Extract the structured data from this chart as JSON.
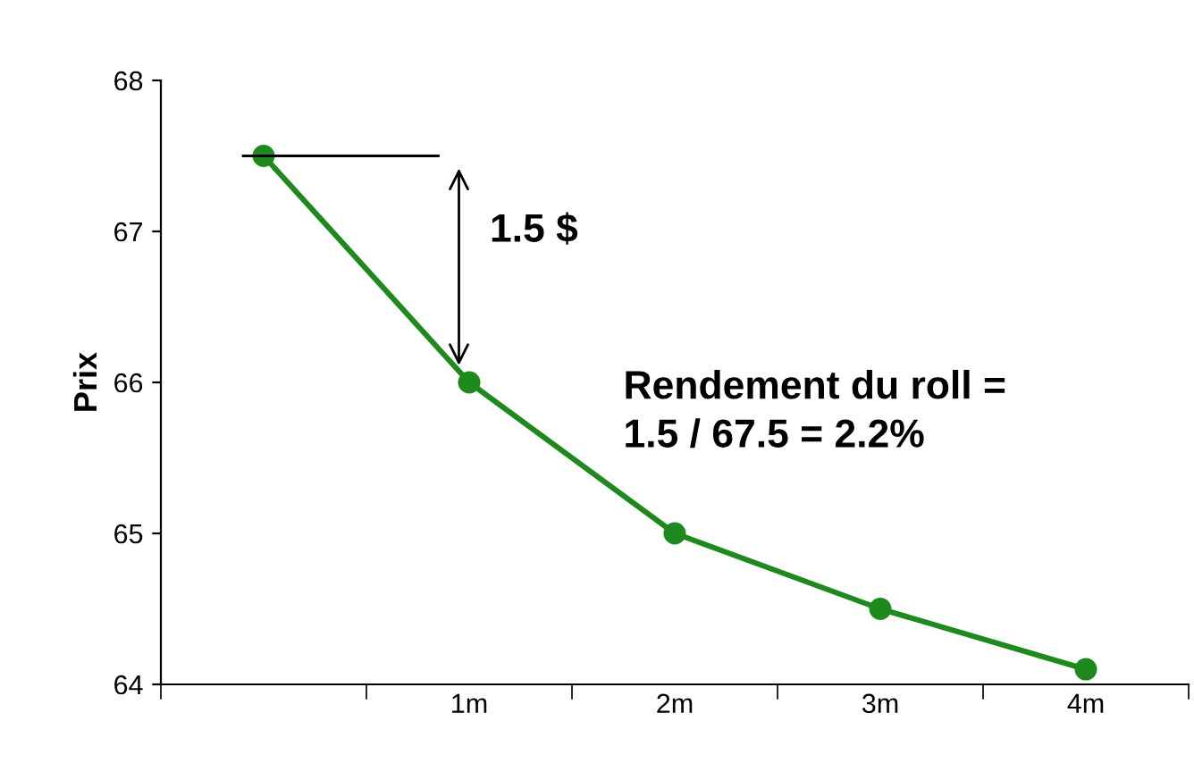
{
  "chart_data": {
    "type": "line",
    "ylabel": "Prix",
    "categories": [
      null,
      "1m",
      "2m",
      "3m",
      "4m"
    ],
    "series": [
      {
        "color": "#1e8a1e",
        "values": [
          67.5,
          66.0,
          65.0,
          64.5,
          64.1
        ]
      }
    ],
    "ylim": [
      64,
      68
    ],
    "yticks": [
      64,
      65,
      66,
      67,
      68
    ],
    "grid": false,
    "legend": false,
    "marker": "circle",
    "line_style": "solid",
    "annotations": [
      "1.5 $",
      "Rendement du roll =\n1.5 / 67.5 = 2.2%"
    ]
  }
}
